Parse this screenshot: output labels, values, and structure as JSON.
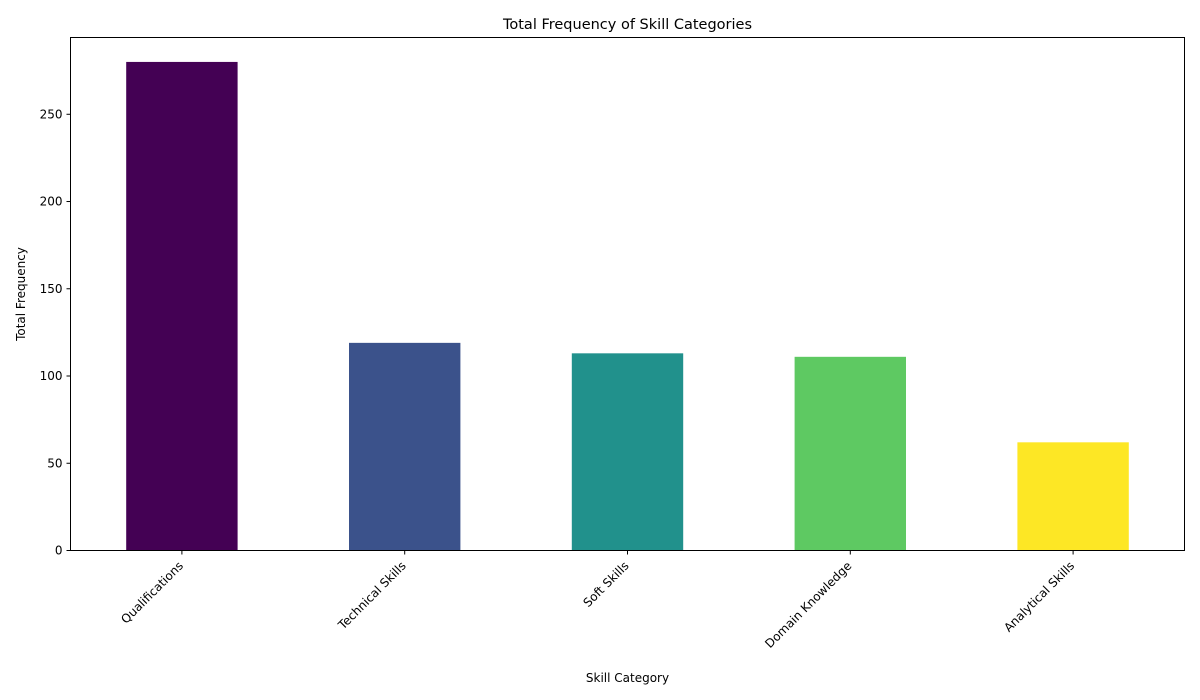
{
  "chart_data": {
    "type": "bar",
    "title": "Total Frequency of Skill Categories",
    "xlabel": "Skill Category",
    "ylabel": "Total Frequency",
    "categories": [
      "Qualifications",
      "Technical Skills",
      "Soft Skills",
      "Domain Knowledge",
      "Analytical Skills"
    ],
    "values": [
      280,
      119,
      113,
      111,
      62
    ],
    "colors": [
      "#440154",
      "#3b528b",
      "#21918c",
      "#5ec962",
      "#fde725"
    ],
    "ylim": [
      0,
      294
    ],
    "yticks": [
      0,
      50,
      100,
      150,
      200,
      250
    ],
    "grid": false,
    "legend": "none"
  }
}
